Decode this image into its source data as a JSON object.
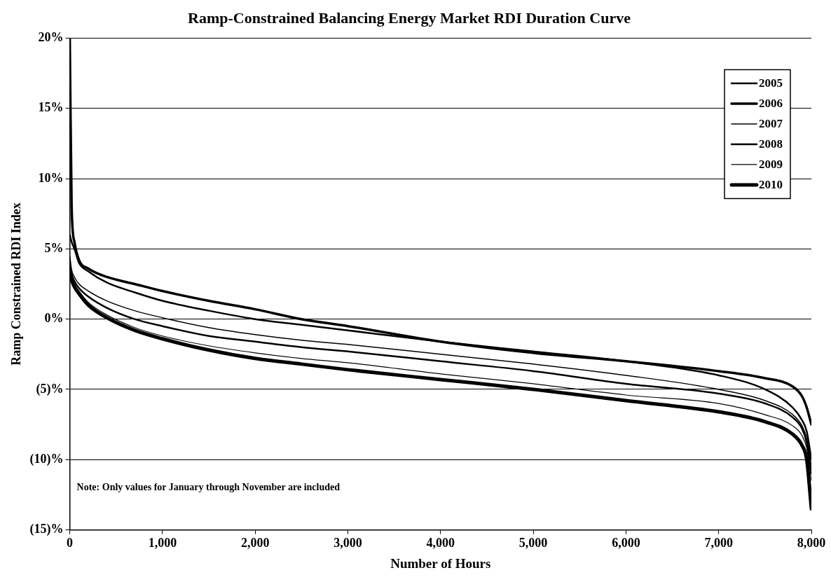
{
  "chart_data": {
    "type": "line",
    "title": "Ramp-Constrained Balancing Energy Market RDI Duration Curve",
    "xlabel": "Number of Hours",
    "ylabel": "Ramp Constrained RDI Index",
    "annotations": [
      "Note: Only values for January through November are included"
    ],
    "x": [
      0,
      20,
      50,
      100,
      200,
      400,
      700,
      1000,
      1500,
      2000,
      2500,
      3000,
      4000,
      5000,
      6000,
      7000,
      7500,
      7800,
      7900,
      7950,
      8000
    ],
    "xlim": [
      0,
      8000
    ],
    "xticks": [
      0,
      {
        "value": 1000,
        "label": "1,000"
      },
      {
        "value": 2000,
        "label": "2,000"
      },
      {
        "value": 3000,
        "label": "3,000"
      },
      {
        "value": 4000,
        "label": "4,000"
      },
      {
        "value": 5000,
        "label": "5,000"
      },
      {
        "value": 6000,
        "label": "6,000"
      },
      {
        "value": 7000,
        "label": "7,000"
      },
      {
        "value": 8000,
        "label": "8,000"
      }
    ],
    "ylim": [
      -15,
      20
    ],
    "yticks": [
      {
        "value": -15,
        "label": "(15)%"
      },
      {
        "value": -10,
        "label": "(10)%"
      },
      {
        "value": -5,
        "label": "(5)%"
      },
      {
        "value": 0,
        "label": "0%"
      },
      {
        "value": 5,
        "label": "5%"
      },
      {
        "value": 10,
        "label": "10%"
      },
      {
        "value": 15,
        "label": "15%"
      },
      {
        "value": 20,
        "label": "20%"
      }
    ],
    "grid": "y",
    "legend": "top right",
    "marker": "none",
    "line_style": "solid",
    "series": [
      {
        "name": "2005",
        "color": "#000000",
        "values": [
          6,
          5.5,
          5,
          4.0,
          3.4,
          2.6,
          1.9,
          1.3,
          0.6,
          0.0,
          -0.4,
          -0.8,
          -1.6,
          -2.3,
          -3.0,
          -4.0,
          -5.0,
          -6.3,
          -7.2,
          -8.0,
          -10.0
        ]
      },
      {
        "name": "2006",
        "color": "#000000",
        "values": [
          20,
          8,
          5.5,
          4.2,
          3.6,
          3.0,
          2.5,
          2.0,
          1.3,
          0.7,
          0.0,
          -0.5,
          -1.6,
          -2.4,
          -3.0,
          -3.7,
          -4.2,
          -4.8,
          -5.5,
          -6.3,
          -7.5
        ]
      },
      {
        "name": "2007",
        "color": "#000000",
        "values": [
          4.5,
          3.5,
          3.0,
          2.5,
          2.0,
          1.3,
          0.6,
          0.1,
          -0.6,
          -1.1,
          -1.5,
          -1.8,
          -2.5,
          -3.2,
          -4.0,
          -5.0,
          -5.8,
          -6.8,
          -7.6,
          -8.5,
          -10.5
        ]
      },
      {
        "name": "2008",
        "color": "#000000",
        "values": [
          4,
          3.2,
          2.7,
          2.2,
          1.6,
          0.8,
          0.0,
          -0.5,
          -1.2,
          -1.6,
          -2.0,
          -2.3,
          -3.0,
          -3.7,
          -4.6,
          -5.3,
          -6.0,
          -7.0,
          -7.8,
          -8.8,
          -11
        ]
      },
      {
        "name": "2009",
        "color": "#000000",
        "values": [
          3.5,
          3.0,
          2.5,
          2.0,
          1.2,
          0.3,
          -0.6,
          -1.2,
          -1.9,
          -2.4,
          -2.8,
          -3.1,
          -3.9,
          -4.6,
          -5.4,
          -6.0,
          -6.8,
          -7.6,
          -8.3,
          -9.2,
          -11.5
        ]
      },
      {
        "name": "2010",
        "color": "#000000",
        "values": [
          3.5,
          2.8,
          2.3,
          1.8,
          1.0,
          0.1,
          -0.8,
          -1.4,
          -2.2,
          -2.8,
          -3.2,
          -3.6,
          -4.3,
          -5.0,
          -5.8,
          -6.6,
          -7.3,
          -8.2,
          -9.0,
          -10.0,
          -13.5
        ]
      }
    ]
  }
}
